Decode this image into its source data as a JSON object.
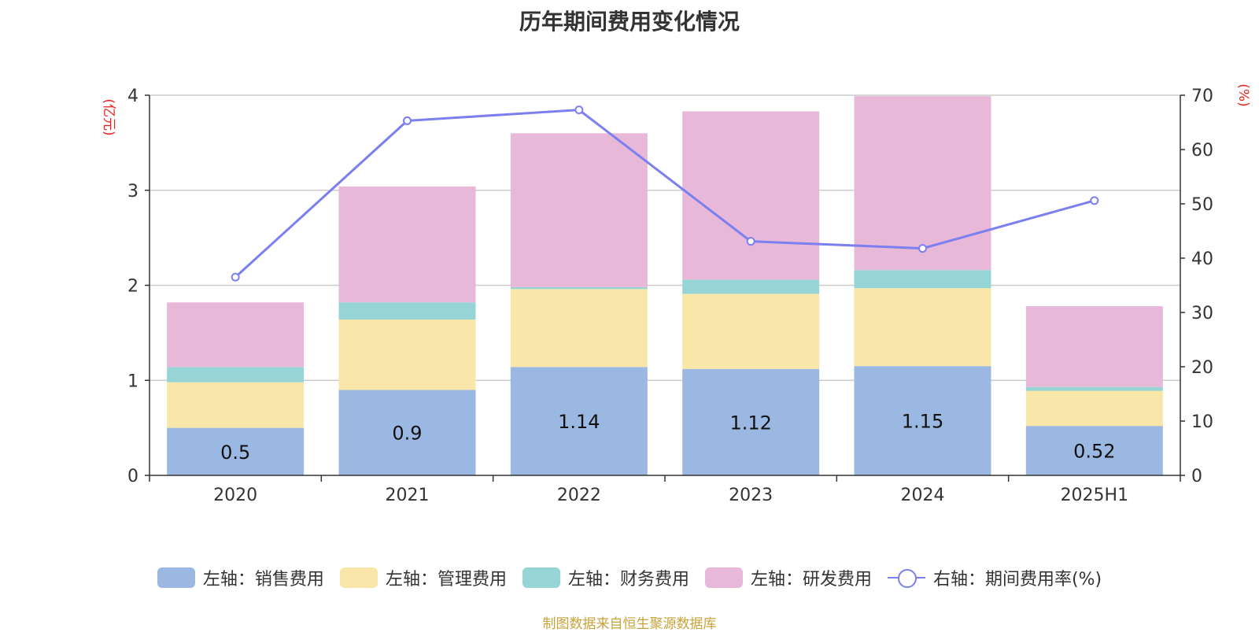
{
  "chart_data": {
    "type": "bar",
    "title": "历年期间费用变化情况",
    "categories": [
      "2020",
      "2021",
      "2022",
      "2023",
      "2024",
      "2025H1"
    ],
    "stacked": true,
    "y_left": {
      "unit_label": "(亿元)",
      "range": [
        0,
        4
      ],
      "ticks": [
        "0",
        "1",
        "2",
        "3",
        "4"
      ]
    },
    "y_right": {
      "unit_label": "(%)",
      "range": [
        0,
        70
      ],
      "ticks": [
        "0",
        "10",
        "20",
        "30",
        "40",
        "50",
        "60",
        "70"
      ]
    },
    "series": [
      {
        "name": "左轴：销售费用",
        "axis": "left",
        "type": "bar",
        "color": "#9bb8e2",
        "values": [
          0.5,
          0.9,
          1.14,
          1.12,
          1.15,
          0.52
        ],
        "labels": [
          "0.5",
          "0.9",
          "1.14",
          "1.12",
          "1.15",
          "0.52"
        ]
      },
      {
        "name": "左轴：管理费用",
        "axis": "left",
        "type": "bar",
        "color": "#f8e7a8",
        "values": [
          0.48,
          0.74,
          0.82,
          0.79,
          0.82,
          0.37
        ]
      },
      {
        "name": "左轴：财务费用",
        "axis": "left",
        "type": "bar",
        "color": "#97d4d5",
        "values": [
          0.16,
          0.18,
          0.02,
          0.15,
          0.19,
          0.04
        ]
      },
      {
        "name": "左轴：研发费用",
        "axis": "left",
        "type": "bar",
        "color": "#e8b8d9",
        "values": [
          0.68,
          1.22,
          1.62,
          1.77,
          1.83,
          0.85
        ]
      },
      {
        "name": "右轴：期间费用率(%)",
        "axis": "right",
        "type": "line",
        "color": "#7b7ff0",
        "values": [
          36.5,
          65.3,
          67.3,
          43.1,
          41.8,
          50.6
        ]
      }
    ],
    "grid": true,
    "legend_position": "bottom"
  },
  "source": "制图数据来自恒生聚源数据库"
}
